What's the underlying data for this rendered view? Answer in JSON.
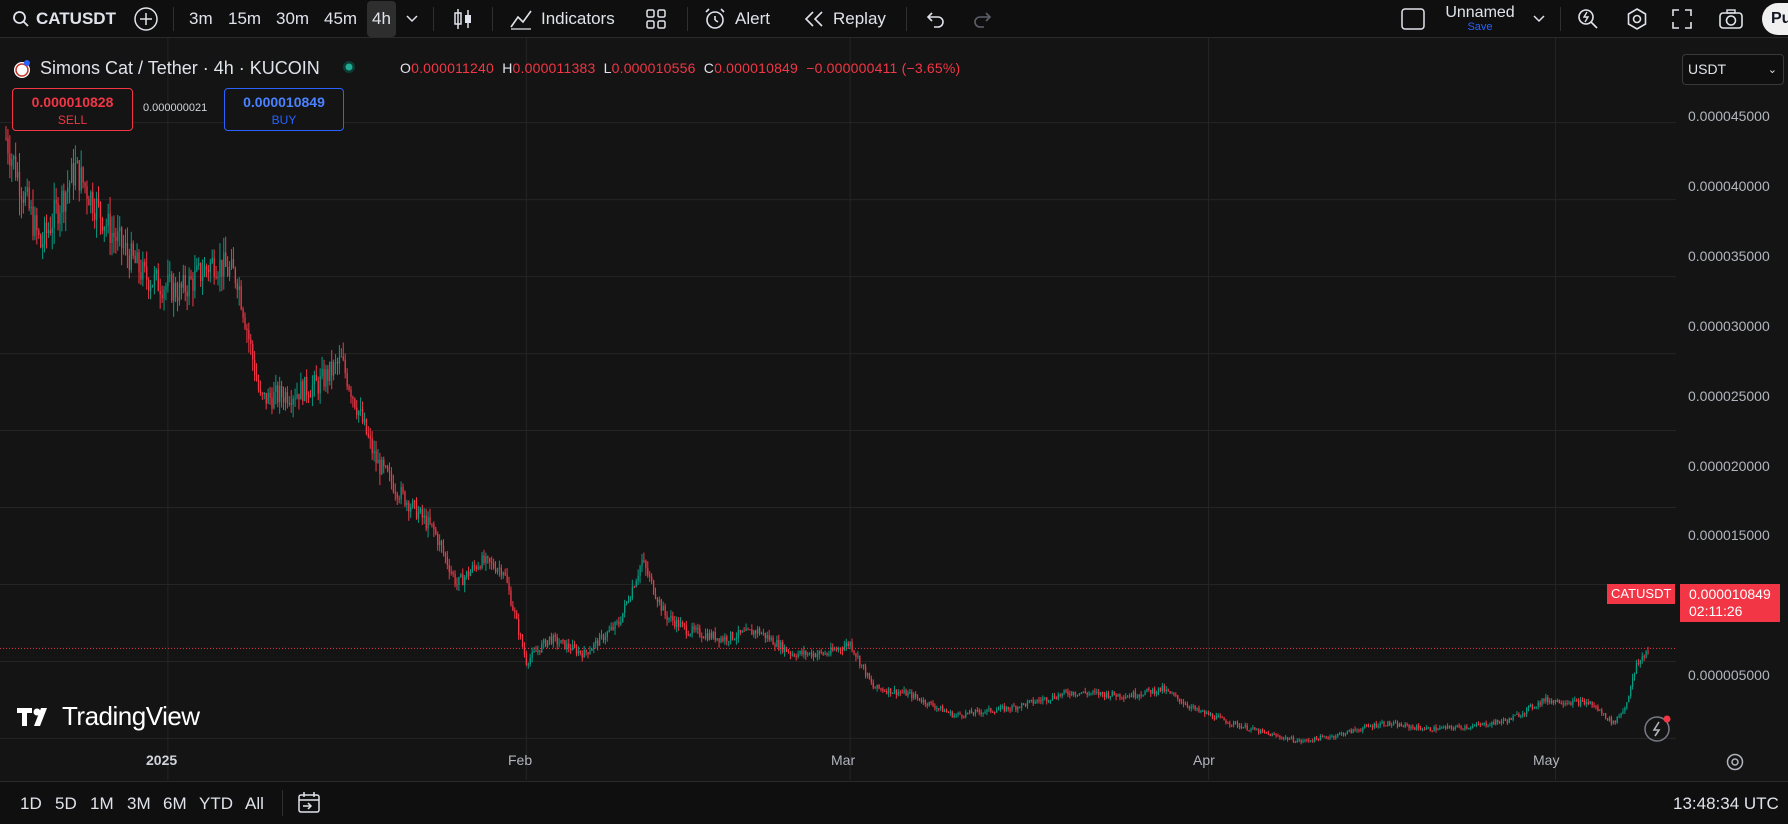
{
  "toolbar": {
    "symbol": "CATUSDT",
    "timeframes": [
      "3m",
      "15m",
      "30m",
      "45m",
      "4h"
    ],
    "active_timeframe": "4h",
    "indicators_label": "Indicators",
    "alert_label": "Alert",
    "replay_label": "Replay",
    "layout_name": "Unnamed",
    "layout_save": "Save",
    "publish_label": "Pu"
  },
  "legend": {
    "title": "Simons Cat / Tether · 4h · KUCOIN",
    "open_label": "O",
    "open": "0.000011240",
    "high_label": "H",
    "high": "0.000011383",
    "low_label": "L",
    "low": "0.000010556",
    "close_label": "C",
    "close": "0.000010849",
    "change": "−0.000000411 (−3.65%)",
    "sell_price": "0.000010828",
    "sell_label": "SELL",
    "spread": "0.000000021",
    "buy_price": "0.000010849",
    "buy_label": "BUY"
  },
  "currency": "USDT",
  "last": {
    "label": "CATUSDT",
    "price": "0.000010849",
    "countdown": "02:11:26"
  },
  "price_axis": [
    "0.000045000",
    "0.000040000",
    "0.000035000",
    "0.000030000",
    "0.000025000",
    "0.000020000",
    "0.000015000",
    "0.000005000"
  ],
  "time_axis": [
    "2025",
    "Feb",
    "Mar",
    "Apr",
    "May"
  ],
  "brand": "TradingView",
  "bottombar": {
    "ranges": [
      "1D",
      "5D",
      "1M",
      "3M",
      "6M",
      "YTD",
      "All"
    ],
    "clock": "13:48:34 UTC"
  },
  "colors": {
    "up": "#089981",
    "down": "#f23645",
    "background": "#141414",
    "grid": "#252525"
  },
  "chart_data": {
    "type": "line",
    "title": "Simons Cat / Tether · 4h · KUCOIN",
    "xlabel": "",
    "ylabel": "",
    "ylim": [
      2.3e-06,
      5.05e-05
    ],
    "x": [
      "2024-12-18",
      "2024-12-21",
      "2024-12-24",
      "2024-12-27",
      "2024-12-30",
      "2025-01-02",
      "2025-01-05",
      "2025-01-07",
      "2025-01-09",
      "2025-01-12",
      "2025-01-14",
      "2025-01-16",
      "2025-01-19",
      "2025-01-21",
      "2025-01-24",
      "2025-01-26",
      "2025-01-28",
      "2025-01-30",
      "2025-02-01",
      "2025-02-03",
      "2025-02-06",
      "2025-02-09",
      "2025-02-11",
      "2025-02-13",
      "2025-02-15",
      "2025-02-18",
      "2025-02-21",
      "2025-02-24",
      "2025-02-27",
      "2025-03-01",
      "2025-03-03",
      "2025-03-06",
      "2025-03-10",
      "2025-03-15",
      "2025-03-20",
      "2025-03-25",
      "2025-03-28",
      "2025-03-31",
      "2025-04-03",
      "2025-04-06",
      "2025-04-09",
      "2025-04-12",
      "2025-04-16",
      "2025-04-20",
      "2025-04-24",
      "2025-04-27",
      "2025-04-30",
      "2025-05-04",
      "2025-05-06",
      "2025-05-07",
      "2025-05-08",
      "2025-05-09"
    ],
    "series": [
      {
        "values": [
          4.4e-05,
          3.7e-05,
          4.2e-05,
          3.8e-05,
          3.5e-05,
          3.4e-05,
          3.6e-05,
          3.5e-05,
          2.7e-05,
          2.75e-05,
          2.8e-05,
          2.95e-05,
          2.3e-05,
          2.1e-05,
          1.85e-05,
          1.5e-05,
          1.65e-05,
          1.6e-05,
          1e-05,
          1.15e-05,
          1.05e-05,
          1.25e-05,
          1.65e-05,
          1.3e-05,
          1.2e-05,
          1.15e-05,
          1.2e-05,
          1.05e-05,
          1.05e-05,
          1.12e-05,
          8.3e-06,
          7.9e-06,
          6.5e-06,
          7e-06,
          8e-06,
          7.8e-06,
          8.2e-06,
          6.8e-06,
          6e-06,
          5.3e-06,
          4.8e-06,
          5.2e-06,
          6e-06,
          5.6e-06,
          5.8e-06,
          6.2e-06,
          7.5e-06,
          7.3e-06,
          6e-06,
          7e-06,
          9.7e-06,
          1.08e-05
        ]
      }
    ]
  }
}
